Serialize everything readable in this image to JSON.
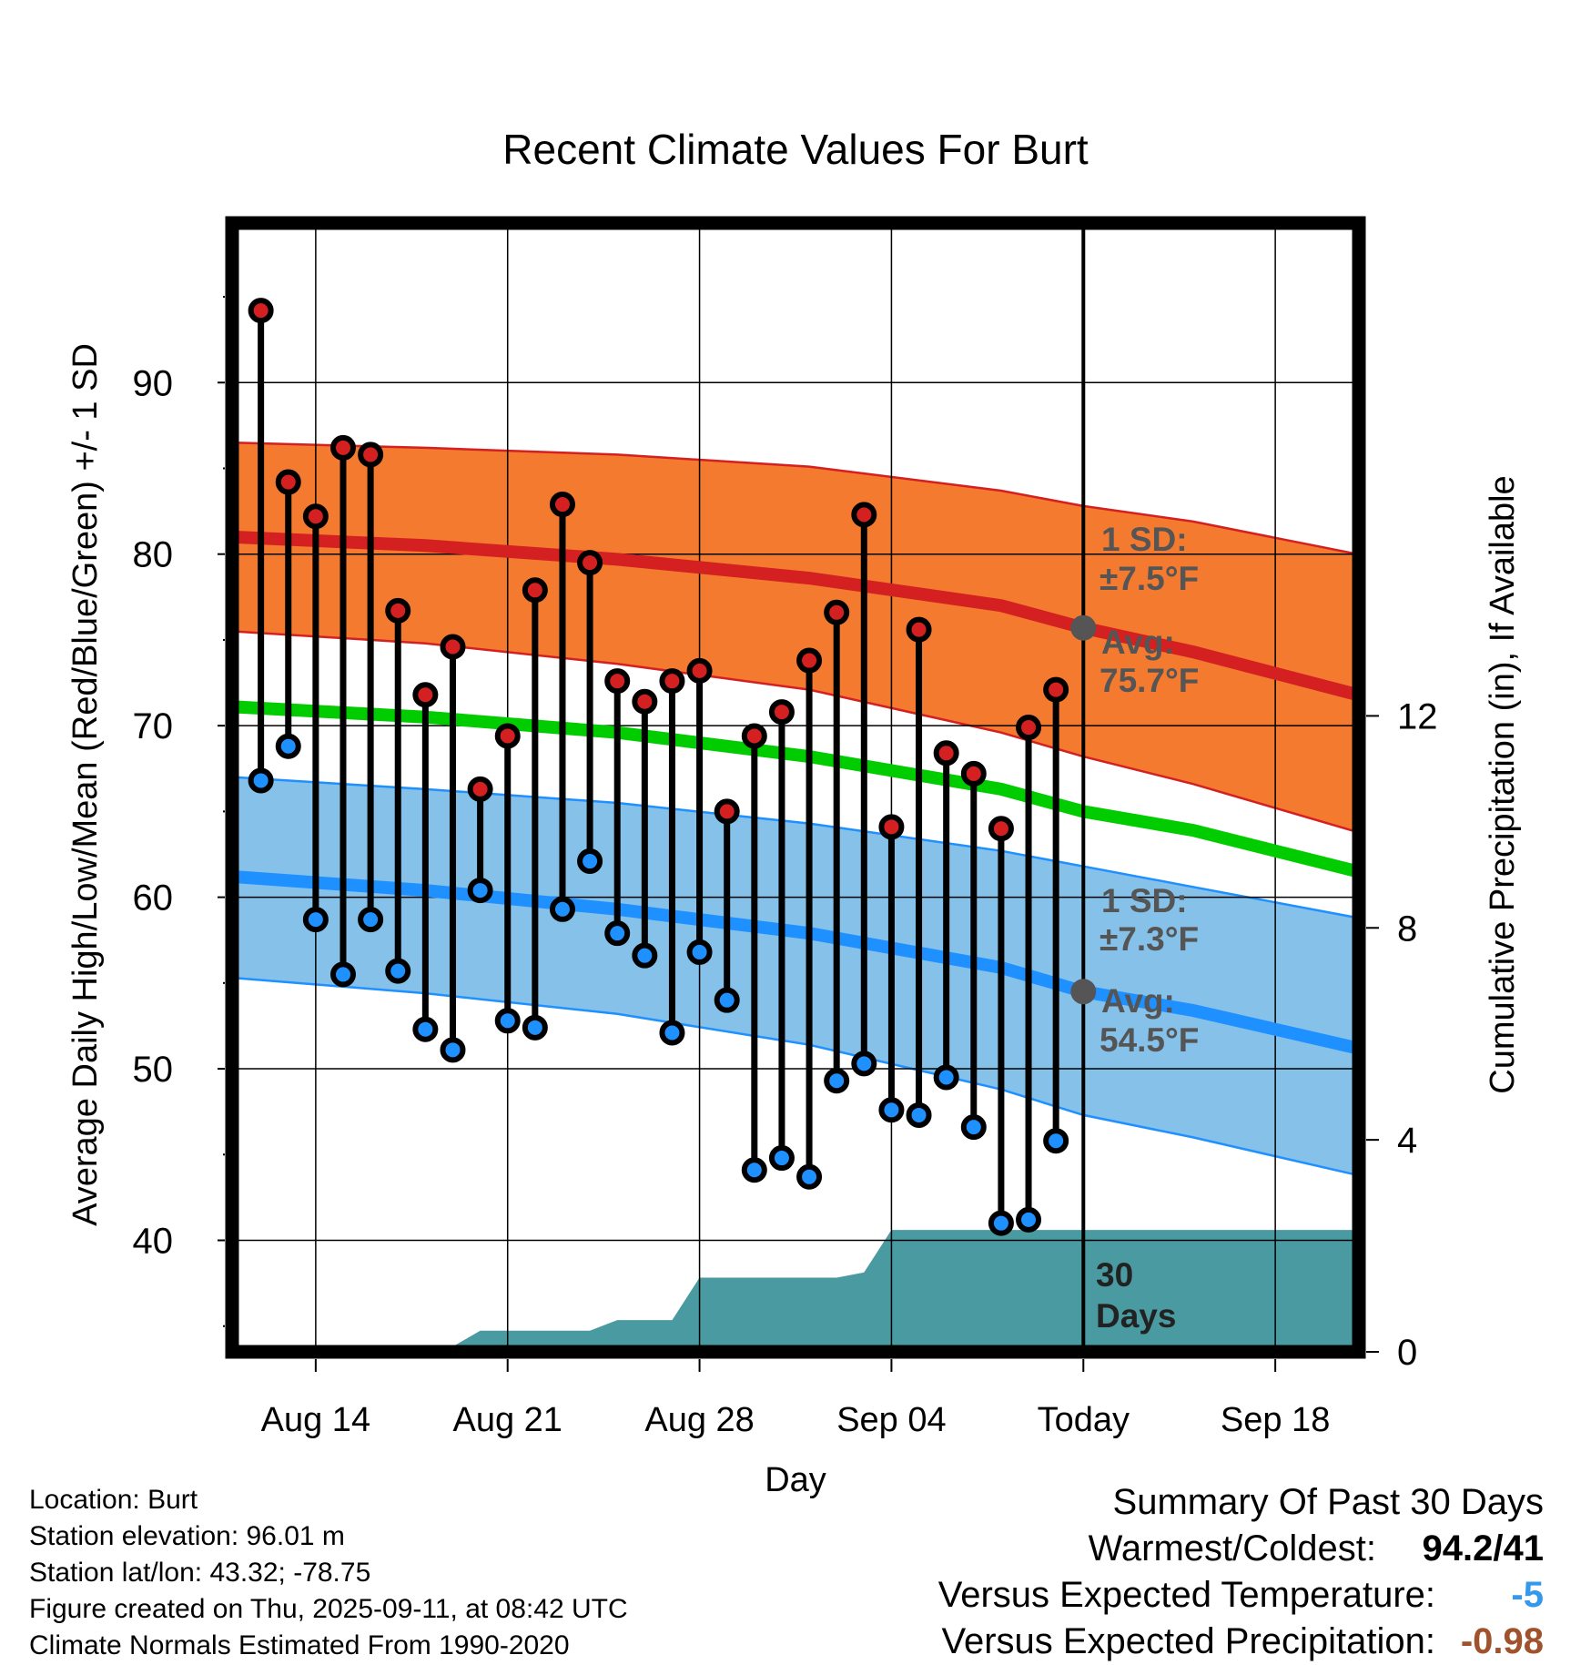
{
  "chart_data": {
    "type": "line",
    "title": "Recent Climate Values For Burt",
    "xlabel": "Day",
    "ylabel": "Average Daily High/Low/Mean (Red/Blue/Green) +/- 1 SD",
    "y2label": "Cumulative Precipitation (in), If Available",
    "ylim": [
      33.5,
      99.3
    ],
    "y2lim": [
      0,
      21.3
    ],
    "xlim": [
      "Aug 11",
      "Sep 21"
    ],
    "x_ticks": [
      "Aug 14",
      "Aug 21",
      "Aug 28",
      "Sep 04",
      "Today",
      "Sep 18"
    ],
    "x_tick_dates": [
      "Aug 14",
      "Aug 21",
      "Aug 28",
      "Sep 04",
      "Sep 11",
      "Sep 18"
    ],
    "y_ticks": [
      40,
      50,
      60,
      70,
      80,
      90
    ],
    "y2_ticks": [
      0,
      4,
      8,
      12
    ],
    "grid": true,
    "dates": [
      "Aug 12",
      "Aug 13",
      "Aug 14",
      "Aug 15",
      "Aug 16",
      "Aug 17",
      "Aug 18",
      "Aug 19",
      "Aug 20",
      "Aug 21",
      "Aug 22",
      "Aug 23",
      "Aug 24",
      "Aug 25",
      "Aug 26",
      "Aug 27",
      "Aug 28",
      "Aug 29",
      "Aug 30",
      "Aug 31",
      "Sep 01",
      "Sep 02",
      "Sep 03",
      "Sep 04",
      "Sep 05",
      "Sep 06",
      "Sep 07",
      "Sep 08",
      "Sep 09",
      "Sep 10"
    ],
    "series": [
      {
        "name": "Daily High",
        "color": "#d42020",
        "values": [
          94.2,
          84.2,
          82.2,
          86.2,
          85.8,
          76.7,
          71.8,
          74.6,
          66.3,
          69.4,
          77.9,
          82.9,
          79.5,
          72.6,
          71.4,
          72.6,
          73.2,
          65.0,
          69.4,
          70.8,
          73.8,
          76.6,
          82.3,
          64.1,
          75.6,
          68.4,
          67.2,
          64.0,
          69.9,
          72.1
        ]
      },
      {
        "name": "Daily Low",
        "color": "#1e90ff",
        "values": [
          66.8,
          68.8,
          58.7,
          55.5,
          58.7,
          55.7,
          52.3,
          51.1,
          60.4,
          52.8,
          52.4,
          59.3,
          62.1,
          57.9,
          56.6,
          52.1,
          56.8,
          54.0,
          44.1,
          44.8,
          43.7,
          49.3,
          50.3,
          47.6,
          47.3,
          49.5,
          46.6,
          41.0,
          41.2,
          45.8
        ]
      }
    ],
    "normals": {
      "x": [
        "Aug 11",
        "Aug 18",
        "Aug 25",
        "Sep 01",
        "Sep 08",
        "Sep 11",
        "Sep 15",
        "Sep 21"
      ],
      "avg_high": [
        81.0,
        80.5,
        79.7,
        78.6,
        77.0,
        75.7,
        74.3,
        71.8
      ],
      "avg_high_plus_sd": [
        86.5,
        86.2,
        85.8,
        85.1,
        83.7,
        82.8,
        81.9,
        80.0
      ],
      "avg_high_minus_sd": [
        75.5,
        74.8,
        73.6,
        72.1,
        69.6,
        68.2,
        66.6,
        63.8
      ],
      "avg_mean": [
        71.1,
        70.5,
        69.6,
        68.2,
        66.3,
        65.0,
        63.9,
        61.5
      ],
      "avg_low": [
        61.2,
        60.4,
        59.3,
        57.9,
        55.9,
        54.5,
        53.4,
        51.2
      ],
      "avg_low_plus_sd": [
        67.0,
        66.3,
        65.5,
        64.3,
        62.7,
        61.8,
        60.6,
        58.8
      ],
      "avg_low_minus_sd": [
        55.3,
        54.4,
        53.2,
        51.4,
        48.8,
        47.3,
        46.0,
        43.8
      ]
    },
    "precipitation": {
      "x": [
        "Aug 11",
        "Aug 18",
        "Aug 19",
        "Aug 20",
        "Aug 24",
        "Aug 25",
        "Aug 27",
        "Aug 28",
        "Sep 02",
        "Sep 03",
        "Sep 04",
        "Sep 21"
      ],
      "cumulative_in": [
        0,
        0,
        0.1,
        0.4,
        0.4,
        0.6,
        0.6,
        1.4,
        1.4,
        1.5,
        2.3,
        2.3
      ]
    },
    "annotations": {
      "high_sd": "1 SD:",
      "high_sd_value": "±7.5°F",
      "high_avg": "Avg:",
      "high_avg_value": "75.7°F",
      "low_sd": "1 SD:",
      "low_sd_value": "±7.3°F",
      "low_avg": "Avg:",
      "low_avg_value": "54.5°F",
      "precip_days": "30",
      "precip_days_label": "Days"
    }
  },
  "footer": {
    "location": "Location: Burt",
    "elevation": "Station elevation: 96.01 m",
    "latlon": "Station lat/lon: 43.32; -78.75",
    "created": "Figure created on Thu, 2025-09-11, at 08:42 UTC",
    "normals": "Climate Normals Estimated From 1990-2020"
  },
  "summary": {
    "title": "Summary Of Past 30 Days",
    "warmest_coldest_label": "Warmest/Coldest:",
    "warmest_coldest_value": "94.2/41",
    "temp_label": "Versus Expected Temperature:",
    "temp_value": "-5",
    "temp_color": "#3399ee",
    "precip_label": "Versus Expected Precipitation:",
    "precip_value": "-0.98",
    "precip_color": "#a0522d"
  },
  "colors": {
    "high_band": "#f47a30",
    "high_line": "#d42020",
    "mean_line": "#00cc00",
    "low_band": "#85c1e9",
    "low_line": "#1e90ff",
    "precip_fill": "#4a9aa2",
    "annotation_text": "#555555"
  }
}
